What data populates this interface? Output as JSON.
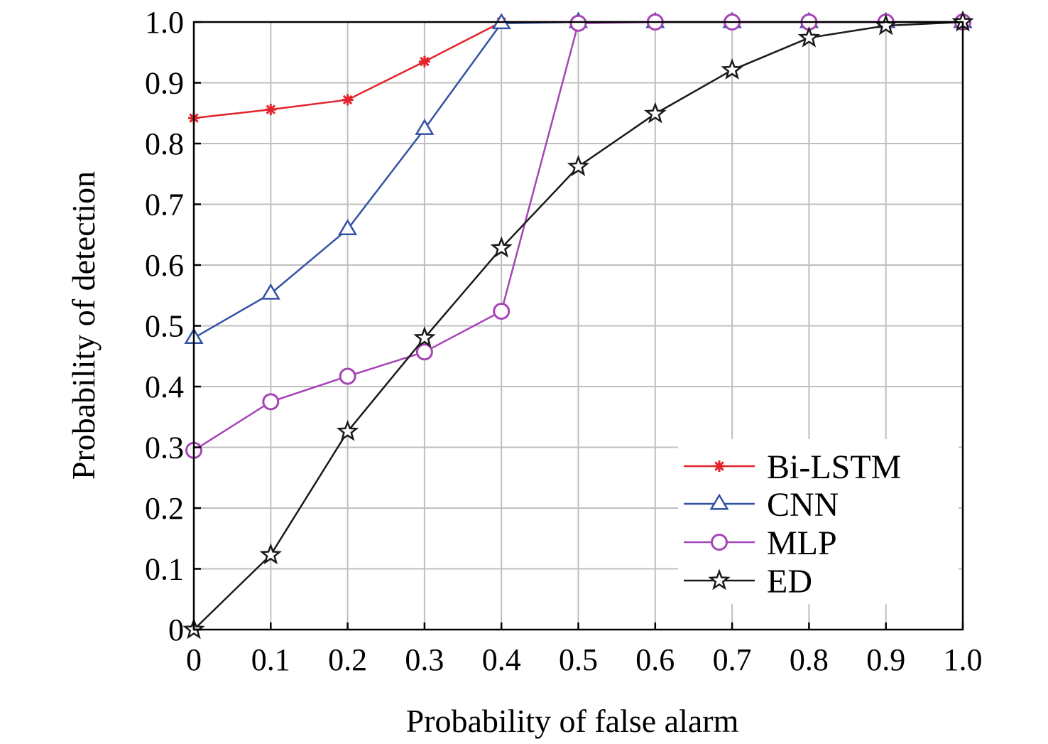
{
  "chart_data": {
    "type": "line",
    "xlabel": "Probability of false alarm",
    "ylabel": "Probability of detection",
    "xlim": [
      0,
      1
    ],
    "ylim": [
      0,
      1
    ],
    "x_ticks": [
      "0",
      "0.1",
      "0.2",
      "0.3",
      "0.4",
      "0.5",
      "0.6",
      "0.7",
      "0.8",
      "0.9",
      "1.0"
    ],
    "y_ticks": [
      "0",
      "0.1",
      "0.2",
      "0.3",
      "0.4",
      "0.5",
      "0.6",
      "0.7",
      "0.8",
      "0.9",
      "1.0"
    ],
    "grid": true,
    "legend_position": "bottom-right",
    "x": [
      0,
      0.1,
      0.2,
      0.3,
      0.4,
      0.5,
      0.6,
      0.7,
      0.8,
      0.9,
      1.0
    ],
    "series": [
      {
        "name": "Bi-LSTM",
        "color": "#e3232b",
        "marker": "asterisk",
        "values": [
          0.842,
          0.856,
          0.872,
          0.935,
          1.0,
          1.0,
          1.0,
          1.0,
          1.0,
          1.0,
          1.0
        ]
      },
      {
        "name": "CNN",
        "color": "#3452a4",
        "marker": "triangle",
        "values": [
          0.48,
          0.553,
          0.659,
          0.824,
          0.998,
          1.0,
          1.0,
          1.0,
          1.0,
          1.0,
          1.0
        ]
      },
      {
        "name": "MLP",
        "color": "#a544b5",
        "marker": "circle",
        "values": [
          0.295,
          0.375,
          0.417,
          0.457,
          0.524,
          0.998,
          1.0,
          1.0,
          1.0,
          1.0,
          1.0
        ]
      },
      {
        "name": "ED",
        "color": "#1a1a1a",
        "marker": "star",
        "values": [
          0.0,
          0.123,
          0.326,
          0.48,
          0.628,
          0.762,
          0.849,
          0.921,
          0.974,
          0.994,
          1.0
        ]
      }
    ]
  }
}
